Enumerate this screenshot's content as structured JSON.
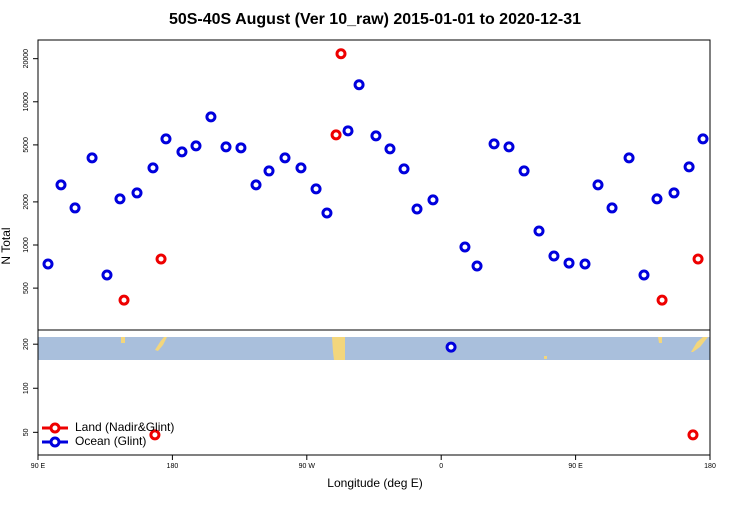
{
  "chart_data": [
    {
      "type": "scatter",
      "title": "50S-40S August (Ver 10_raw)   2015-01-01 to 2020-12-31",
      "y_label": "N Total",
      "ylog": true,
      "xlim": [
        90,
        540
      ],
      "ylim": [
        255,
        27000
      ],
      "yticks": [
        500,
        1000,
        2000,
        5000,
        10000,
        20000
      ],
      "series": [
        {
          "color": "#ee0000",
          "x": [
            147.6,
            172.4,
            289.6,
            292.9,
            507.9,
            532
          ],
          "values": [
            412,
            798,
            5875,
            21660,
            412,
            798
          ]
        },
        {
          "color": "#0000dd",
          "x": [
            96.7,
            105.4,
            114.8,
            126.2,
            136.2,
            144.9,
            156.3,
            167,
            175.7,
            186.4,
            195.8,
            205.8,
            215.9,
            225.9,
            236,
            244.7,
            255.4,
            266.1,
            276.2,
            283.5,
            297.6,
            305,
            316.3,
            325.7,
            335.1,
            343.8,
            354.5,
            375.9,
            384,
            395.4,
            405.4,
            415.5,
            425.5,
            435.5,
            445.6,
            456.3,
            465,
            474.4,
            485.8,
            495.8,
            504.5,
            515.9,
            526,
            535.3
          ],
          "values": [
            737,
            2630,
            1815,
            4060,
            617,
            2098,
            2310,
            3455,
            5510,
            4470,
            4920,
            7850,
            4845,
            4770,
            2630,
            3290,
            4060,
            3455,
            2465,
            1674,
            6270,
            13150,
            5780,
            4690,
            3400,
            1785,
            2065,
            968,
            713,
            5085,
            4845,
            3290,
            1253,
            838,
            748,
            737,
            2630,
            1815,
            4060,
            617,
            2098,
            2310,
            3510,
            5510
          ]
        }
      ]
    },
    {
      "type": "scatter",
      "x_label": "Longitude (deg E)",
      "ylog": true,
      "legend": "lower left",
      "xlim": [
        90,
        540
      ],
      "ylim": [
        35,
        250
      ],
      "yticks": [
        50,
        100,
        200
      ],
      "xticks": [
        {
          "value": 90,
          "label": "90 E"
        },
        {
          "value": 180,
          "label": "180"
        },
        {
          "value": 270,
          "label": "90 W"
        },
        {
          "value": 360,
          "label": "0"
        },
        {
          "value": 450,
          "label": "90 E"
        },
        {
          "value": 540,
          "label": "180"
        }
      ],
      "series": [
        {
          "name": "Land (Nadir&Glint)",
          "color": "#ee0000",
          "x": [
            168.3,
            528.6
          ],
          "values": [
            48,
            48
          ]
        },
        {
          "name": "Ocean (Glint)",
          "color": "#0000dd",
          "x": [
            366.6
          ],
          "values": [
            191
          ]
        }
      ]
    }
  ]
}
